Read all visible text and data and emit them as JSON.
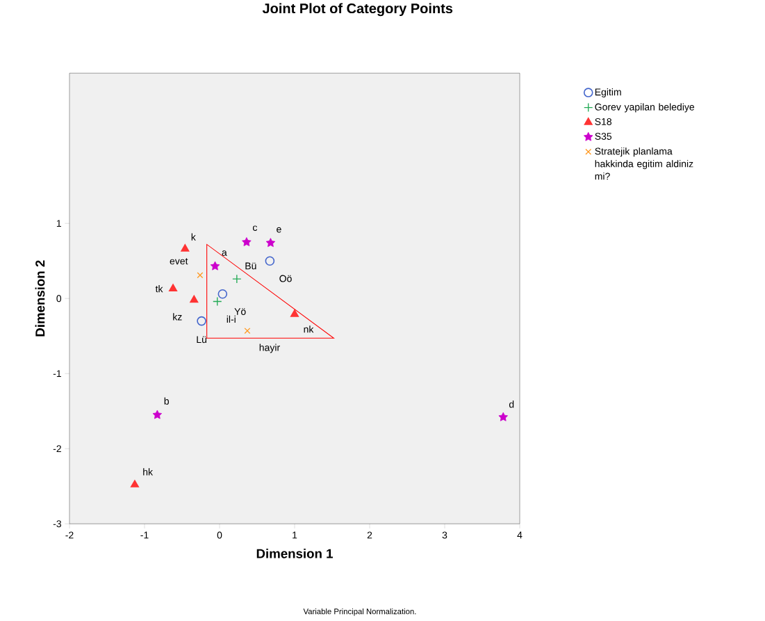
{
  "chart_data": {
    "type": "scatter",
    "title": "Joint Plot of Category Points",
    "xlabel": "Dimension 1",
    "ylabel": "Dimension 2",
    "xlim": [
      -2,
      4
    ],
    "ylim": [
      -3,
      3
    ],
    "xticks": [
      -2,
      -1,
      0,
      1,
      2,
      3,
      4
    ],
    "yticks": [
      -3,
      -2,
      -1,
      0,
      1
    ],
    "legend": "right",
    "series": [
      {
        "name": "Egitim",
        "color": "#4466cc",
        "marker": "circle",
        "x": [
          -0.24,
          0.04,
          0.67
        ],
        "values": [
          -0.3,
          0.06,
          0.5
        ]
      },
      {
        "name": "Gorev yapilan belediye",
        "color": "#22aa55",
        "marker": "plus",
        "x": [
          0.23,
          -0.03
        ],
        "values": [
          0.26,
          -0.04
        ]
      },
      {
        "name": "S18",
        "color": "#ff3333",
        "marker": "triangle",
        "x": [
          -0.46,
          -0.62,
          -0.34,
          1.0,
          -1.13
        ],
        "values": [
          0.66,
          0.13,
          -0.02,
          -0.21,
          -2.48
        ]
      },
      {
        "name": "S35",
        "color": "#cc00cc",
        "marker": "star",
        "x": [
          -0.06,
          0.36,
          0.68,
          -0.83,
          3.78
        ],
        "values": [
          0.43,
          0.75,
          0.74,
          -1.55,
          -1.58
        ]
      },
      {
        "name": "Stratejik planlama hakkinda egitim aldiniz mi?",
        "color": "#ff9922",
        "marker": "cross",
        "x": [
          -0.26,
          0.37
        ],
        "values": [
          0.31,
          -0.43
        ]
      }
    ],
    "annotations": [
      {
        "text": "k",
        "x": -0.46,
        "y": 0.66
      },
      {
        "text": "evet",
        "x": -0.26,
        "y": 0.31
      },
      {
        "text": "tk",
        "x": -0.62,
        "y": 0.13
      },
      {
        "text": "kz",
        "x": -0.34,
        "y": -0.02
      },
      {
        "text": "Lü",
        "x": -0.24,
        "y": -0.3
      },
      {
        "text": "a",
        "x": -0.06,
        "y": 0.43
      },
      {
        "text": "Bü",
        "x": 0.23,
        "y": 0.26
      },
      {
        "text": "Oö",
        "x": 0.67,
        "y": 0.5
      },
      {
        "text": "Yö",
        "x": 0.04,
        "y": 0.06
      },
      {
        "text": "il-i",
        "x": -0.03,
        "y": -0.04
      },
      {
        "text": "nk",
        "x": 1.0,
        "y": -0.21
      },
      {
        "text": "hayir",
        "x": 0.37,
        "y": -0.43
      },
      {
        "text": "c",
        "x": 0.36,
        "y": 0.75
      },
      {
        "text": "e",
        "x": 0.68,
        "y": 0.74
      },
      {
        "text": "b",
        "x": -0.83,
        "y": -1.55
      },
      {
        "text": "d",
        "x": 3.78,
        "y": -1.58
      },
      {
        "text": "hk",
        "x": -1.13,
        "y": -2.48
      },
      "Variable Principal Normalization."
    ]
  }
}
